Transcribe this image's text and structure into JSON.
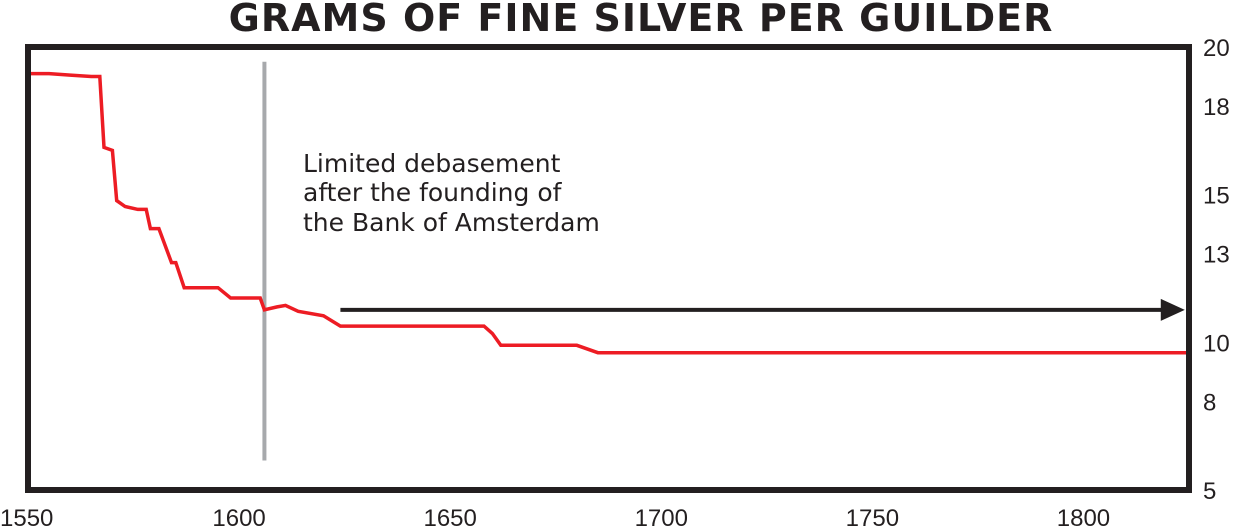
{
  "chart_data": {
    "type": "line",
    "title": "GRAMS OF FINE SILVER PER GUILDER",
    "xlabel": "",
    "ylabel": "",
    "xlim": [
      1550,
      1825
    ],
    "ylim": [
      5,
      20
    ],
    "x_ticks": [
      1550,
      1600,
      1650,
      1700,
      1750,
      1800
    ],
    "y_ticks": [
      5,
      8,
      10,
      13,
      15,
      18,
      20
    ],
    "y_axis_side": "right",
    "grid": false,
    "legend": "none",
    "colors": {
      "line": "#ed1c24",
      "frame": "#231f20",
      "marker_line": "#a7a9ac",
      "arrow": "#231f20"
    },
    "series": [
      {
        "x": [
          1550,
          1555,
          1560,
          1565,
          1567,
          1568,
          1570,
          1571,
          1573,
          1576,
          1578,
          1579,
          1581,
          1584,
          1585,
          1587,
          1590,
          1595,
          1598,
          1602,
          1605,
          1606,
          1609,
          1611,
          1614,
          1620,
          1624,
          1630,
          1640,
          1650,
          1658,
          1660,
          1662,
          1670,
          1680,
          1685,
          1700,
          1720,
          1750,
          1780,
          1800,
          1825
        ],
        "y": [
          19.1,
          19.1,
          19.05,
          19.0,
          19.0,
          16.6,
          16.5,
          14.8,
          14.6,
          14.5,
          14.5,
          13.85,
          13.85,
          12.7,
          12.7,
          11.85,
          11.85,
          11.85,
          11.5,
          11.5,
          11.5,
          11.1,
          11.2,
          11.25,
          11.05,
          10.9,
          10.55,
          10.55,
          10.55,
          10.55,
          10.55,
          10.3,
          9.9,
          9.9,
          9.9,
          9.65,
          9.65,
          9.65,
          9.65,
          9.65,
          9.65,
          9.65
        ]
      }
    ],
    "annotations": [
      {
        "kind": "vertical-line",
        "x": 1606,
        "y_range": [
          6.0,
          19.5
        ]
      },
      {
        "kind": "text",
        "lines": [
          "Limited debasement",
          "after the founding of",
          "the Bank of Amsterdam"
        ]
      },
      {
        "kind": "arrow",
        "x_range": [
          1624,
          1824
        ],
        "y": 11.1
      }
    ]
  }
}
